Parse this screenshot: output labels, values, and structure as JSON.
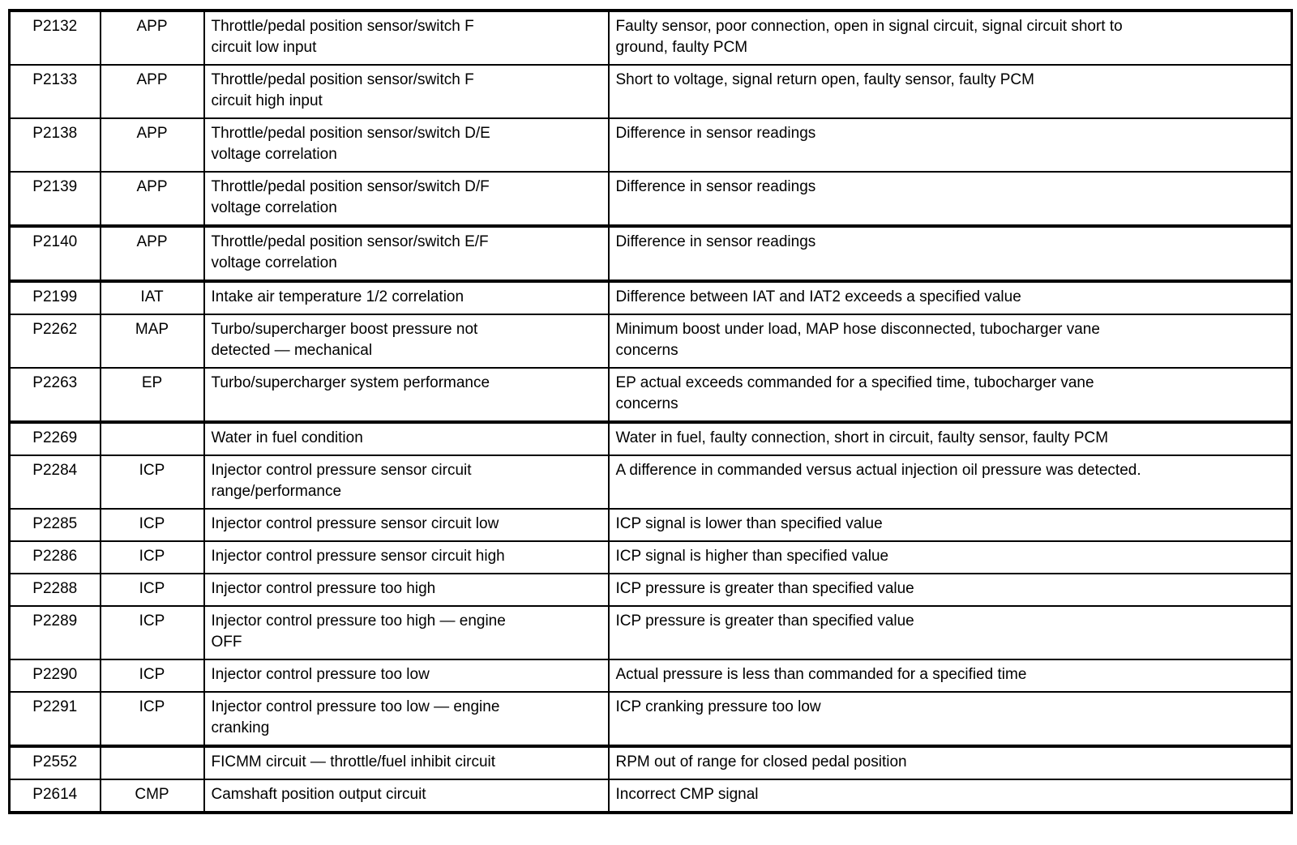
{
  "page": {
    "background_color": "#ffffff",
    "border_color": "#000000",
    "text_color": "#000000"
  },
  "table": {
    "name": "diagnostic-trouble-code-table",
    "columns": [
      "code",
      "system",
      "description",
      "causes"
    ],
    "rows": [
      {
        "code": "P2132",
        "system": "APP",
        "description": "Throttle/pedal position sensor/switch F\ncircuit low input",
        "causes": "Faulty sensor, poor connection, open in signal circuit, signal circuit short to\nground, faulty PCM",
        "thick_top": false
      },
      {
        "code": "P2133",
        "system": "APP",
        "description": "Throttle/pedal position sensor/switch F\ncircuit high input",
        "causes": "Short to voltage, signal return open, faulty sensor, faulty PCM",
        "thick_top": false
      },
      {
        "code": "P2138",
        "system": "APP",
        "description": "Throttle/pedal position sensor/switch D/E\nvoltage correlation",
        "causes": "Difference in sensor readings",
        "thick_top": false
      },
      {
        "code": "P2139",
        "system": "APP",
        "description": "Throttle/pedal position sensor/switch D/F\nvoltage correlation",
        "causes": "Difference in sensor readings",
        "thick_top": false
      },
      {
        "code": "P2140",
        "system": "APP",
        "description": "Throttle/pedal position sensor/switch E/F\nvoltage correlation",
        "causes": "Difference in sensor readings",
        "thick_top": true
      },
      {
        "code": "P2199",
        "system": "IAT",
        "description": "Intake air temperature 1/2 correlation",
        "causes": "Difference between IAT and IAT2 exceeds a specified value",
        "thick_top": true
      },
      {
        "code": "P2262",
        "system": "MAP",
        "description": "Turbo/supercharger boost pressure not\ndetected — mechanical",
        "causes": "Minimum boost under load, MAP hose disconnected, tubocharger vane\nconcerns",
        "thick_top": false
      },
      {
        "code": "P2263",
        "system": "EP",
        "description": "Turbo/supercharger system performance",
        "causes": "EP actual exceeds commanded for a specified time, tubocharger vane\nconcerns",
        "thick_top": false
      },
      {
        "code": "P2269",
        "system": "",
        "description": "Water in fuel condition",
        "causes": "Water in fuel, faulty connection, short in circuit, faulty sensor, faulty PCM",
        "thick_top": true
      },
      {
        "code": "P2284",
        "system": "ICP",
        "description": "Injector control pressure sensor circuit\nrange/performance",
        "causes": "A difference in commanded versus actual injection oil pressure was detected.",
        "thick_top": false
      },
      {
        "code": "P2285",
        "system": "ICP",
        "description": "Injector control pressure sensor circuit low",
        "causes": "ICP signal is lower than specified value",
        "thick_top": false
      },
      {
        "code": "P2286",
        "system": "ICP",
        "description": "Injector control pressure sensor circuit high",
        "causes": "ICP signal is higher than specified value",
        "thick_top": false
      },
      {
        "code": "P2288",
        "system": "ICP",
        "description": "Injector control pressure too high",
        "causes": "ICP pressure is greater than specified value",
        "thick_top": false
      },
      {
        "code": "P2289",
        "system": "ICP",
        "description": "Injector control pressure too high — engine\nOFF",
        "causes": "ICP pressure is greater than specified value",
        "thick_top": false
      },
      {
        "code": "P2290",
        "system": "ICP",
        "description": "Injector control pressure too low",
        "causes": "Actual pressure is less than commanded for a specified time",
        "thick_top": false
      },
      {
        "code": "P2291",
        "system": "ICP",
        "description": "Injector control pressure too low — engine\ncranking",
        "causes": "ICP cranking pressure too low",
        "thick_top": false
      },
      {
        "code": "P2552",
        "system": "",
        "description": "FICMM circuit — throttle/fuel inhibit circuit",
        "causes": "RPM out of range for closed pedal position",
        "thick_top": true
      },
      {
        "code": "P2614",
        "system": "CMP",
        "description": "Camshaft position output circuit",
        "causes": "Incorrect CMP signal",
        "thick_top": false
      }
    ]
  }
}
